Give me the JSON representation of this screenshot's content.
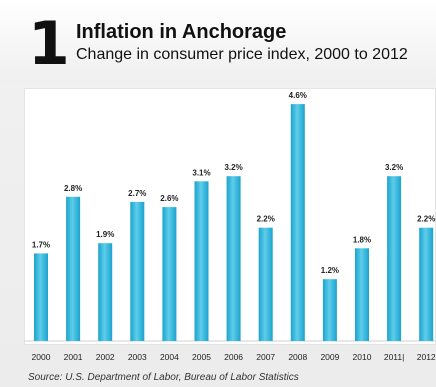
{
  "header": {
    "number": "1",
    "title": "Inflation in Anchorage",
    "subtitle": "Change in consumer price index, 2000 to 2012"
  },
  "source": "Source: U.S. Department of Labor, Bureau of Labor Statistics",
  "colors": {
    "bar_top": "#5fcdea",
    "bar_bottom": "#1aa3cf",
    "gridline": "#d0d0d0",
    "text": "#222222"
  },
  "chart_data": {
    "type": "bar",
    "title": "Inflation in Anchorage",
    "subtitle": "Change in consumer price index, 2000 to 2012",
    "categories": [
      "2000",
      "2001",
      "2002",
      "2003",
      "2004",
      "2005",
      "2006",
      "2007",
      "2008",
      "2009",
      "2010",
      "2011|",
      "2012"
    ],
    "values": [
      1.7,
      2.8,
      1.9,
      2.7,
      2.6,
      3.1,
      3.2,
      2.2,
      4.6,
      1.2,
      1.8,
      3.2,
      2.2
    ],
    "value_labels": [
      "1.7%",
      "2.8%",
      "1.9%",
      "2.7%",
      "2.6%",
      "3.1%",
      "3.2%",
      "2.2%",
      "4.6%",
      "1.2%",
      "1.8%",
      "3.2%",
      "2.2%"
    ],
    "ylim": [
      0,
      5
    ],
    "unit": "%",
    "grid": true,
    "xlabel": "",
    "ylabel": ""
  }
}
